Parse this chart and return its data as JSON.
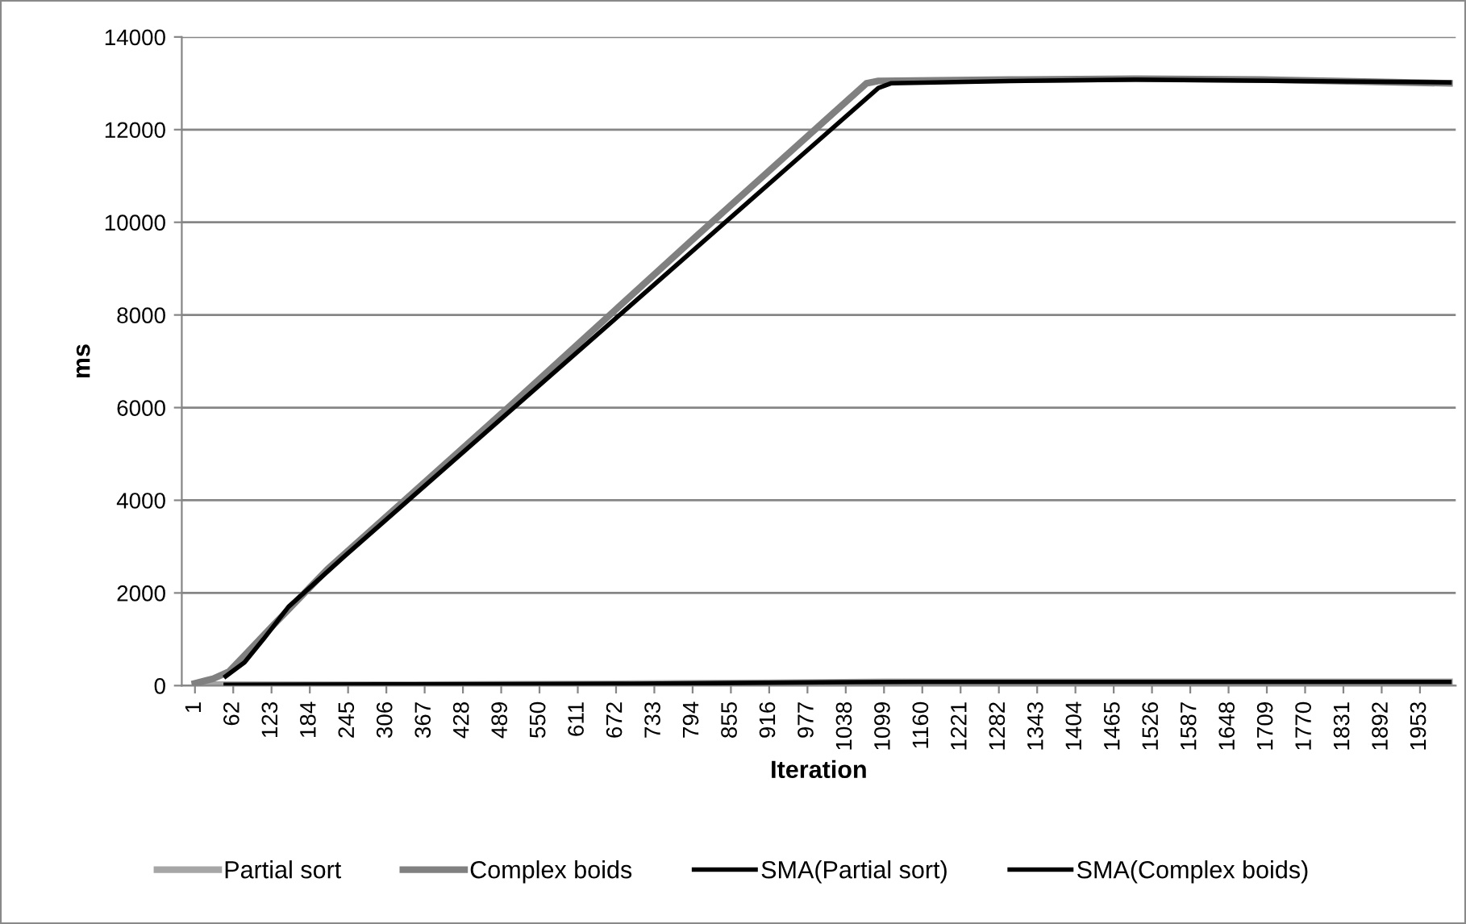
{
  "chart_data": {
    "type": "line",
    "xlabel": "Iteration",
    "ylabel": "ms",
    "xlim": [
      -20,
      2010
    ],
    "ylim": [
      0,
      14000
    ],
    "xticks": [
      1,
      62,
      123,
      184,
      245,
      306,
      367,
      428,
      489,
      550,
      611,
      672,
      733,
      794,
      855,
      916,
      977,
      1038,
      1099,
      1160,
      1221,
      1282,
      1343,
      1404,
      1465,
      1526,
      1587,
      1648,
      1709,
      1770,
      1831,
      1892,
      1953
    ],
    "yticks": [
      0,
      2000,
      4000,
      6000,
      8000,
      10000,
      12000,
      14000
    ],
    "grid": "y",
    "legend": "bottom",
    "line_style": "solid",
    "marker": "none",
    "series": [
      {
        "name": "Partial sort",
        "color": "#a6a6a6",
        "x": [
          1,
          300,
          700,
          1000,
          1100,
          2000
        ],
        "values": [
          20,
          20,
          40,
          70,
          80,
          80
        ]
      },
      {
        "name": "Complex boids",
        "color": "#808080",
        "x": [
          1,
          30,
          55,
          80,
          127,
          212,
          500,
          800,
          1071,
          1090,
          1300,
          1500,
          1700,
          2000
        ],
        "values": [
          50,
          150,
          300,
          650,
          1320,
          2510,
          6000,
          9700,
          13000,
          13050,
          13080,
          13100,
          13080,
          13000
        ]
      },
      {
        "name": "SMA(Partial sort)",
        "color": "#000000",
        "x": [
          50,
          300,
          700,
          1050,
          1150,
          2000
        ],
        "values": [
          20,
          25,
          40,
          75,
          80,
          80
        ]
      },
      {
        "name": "SMA(Complex boids)",
        "color": "#000000",
        "x": [
          50,
          80,
          110,
          150,
          240,
          1090,
          1110,
          1300,
          1500,
          2000
        ],
        "values": [
          200,
          500,
          1000,
          1700,
          2800,
          12900,
          13000,
          13050,
          13080,
          13020
        ]
      }
    ]
  }
}
